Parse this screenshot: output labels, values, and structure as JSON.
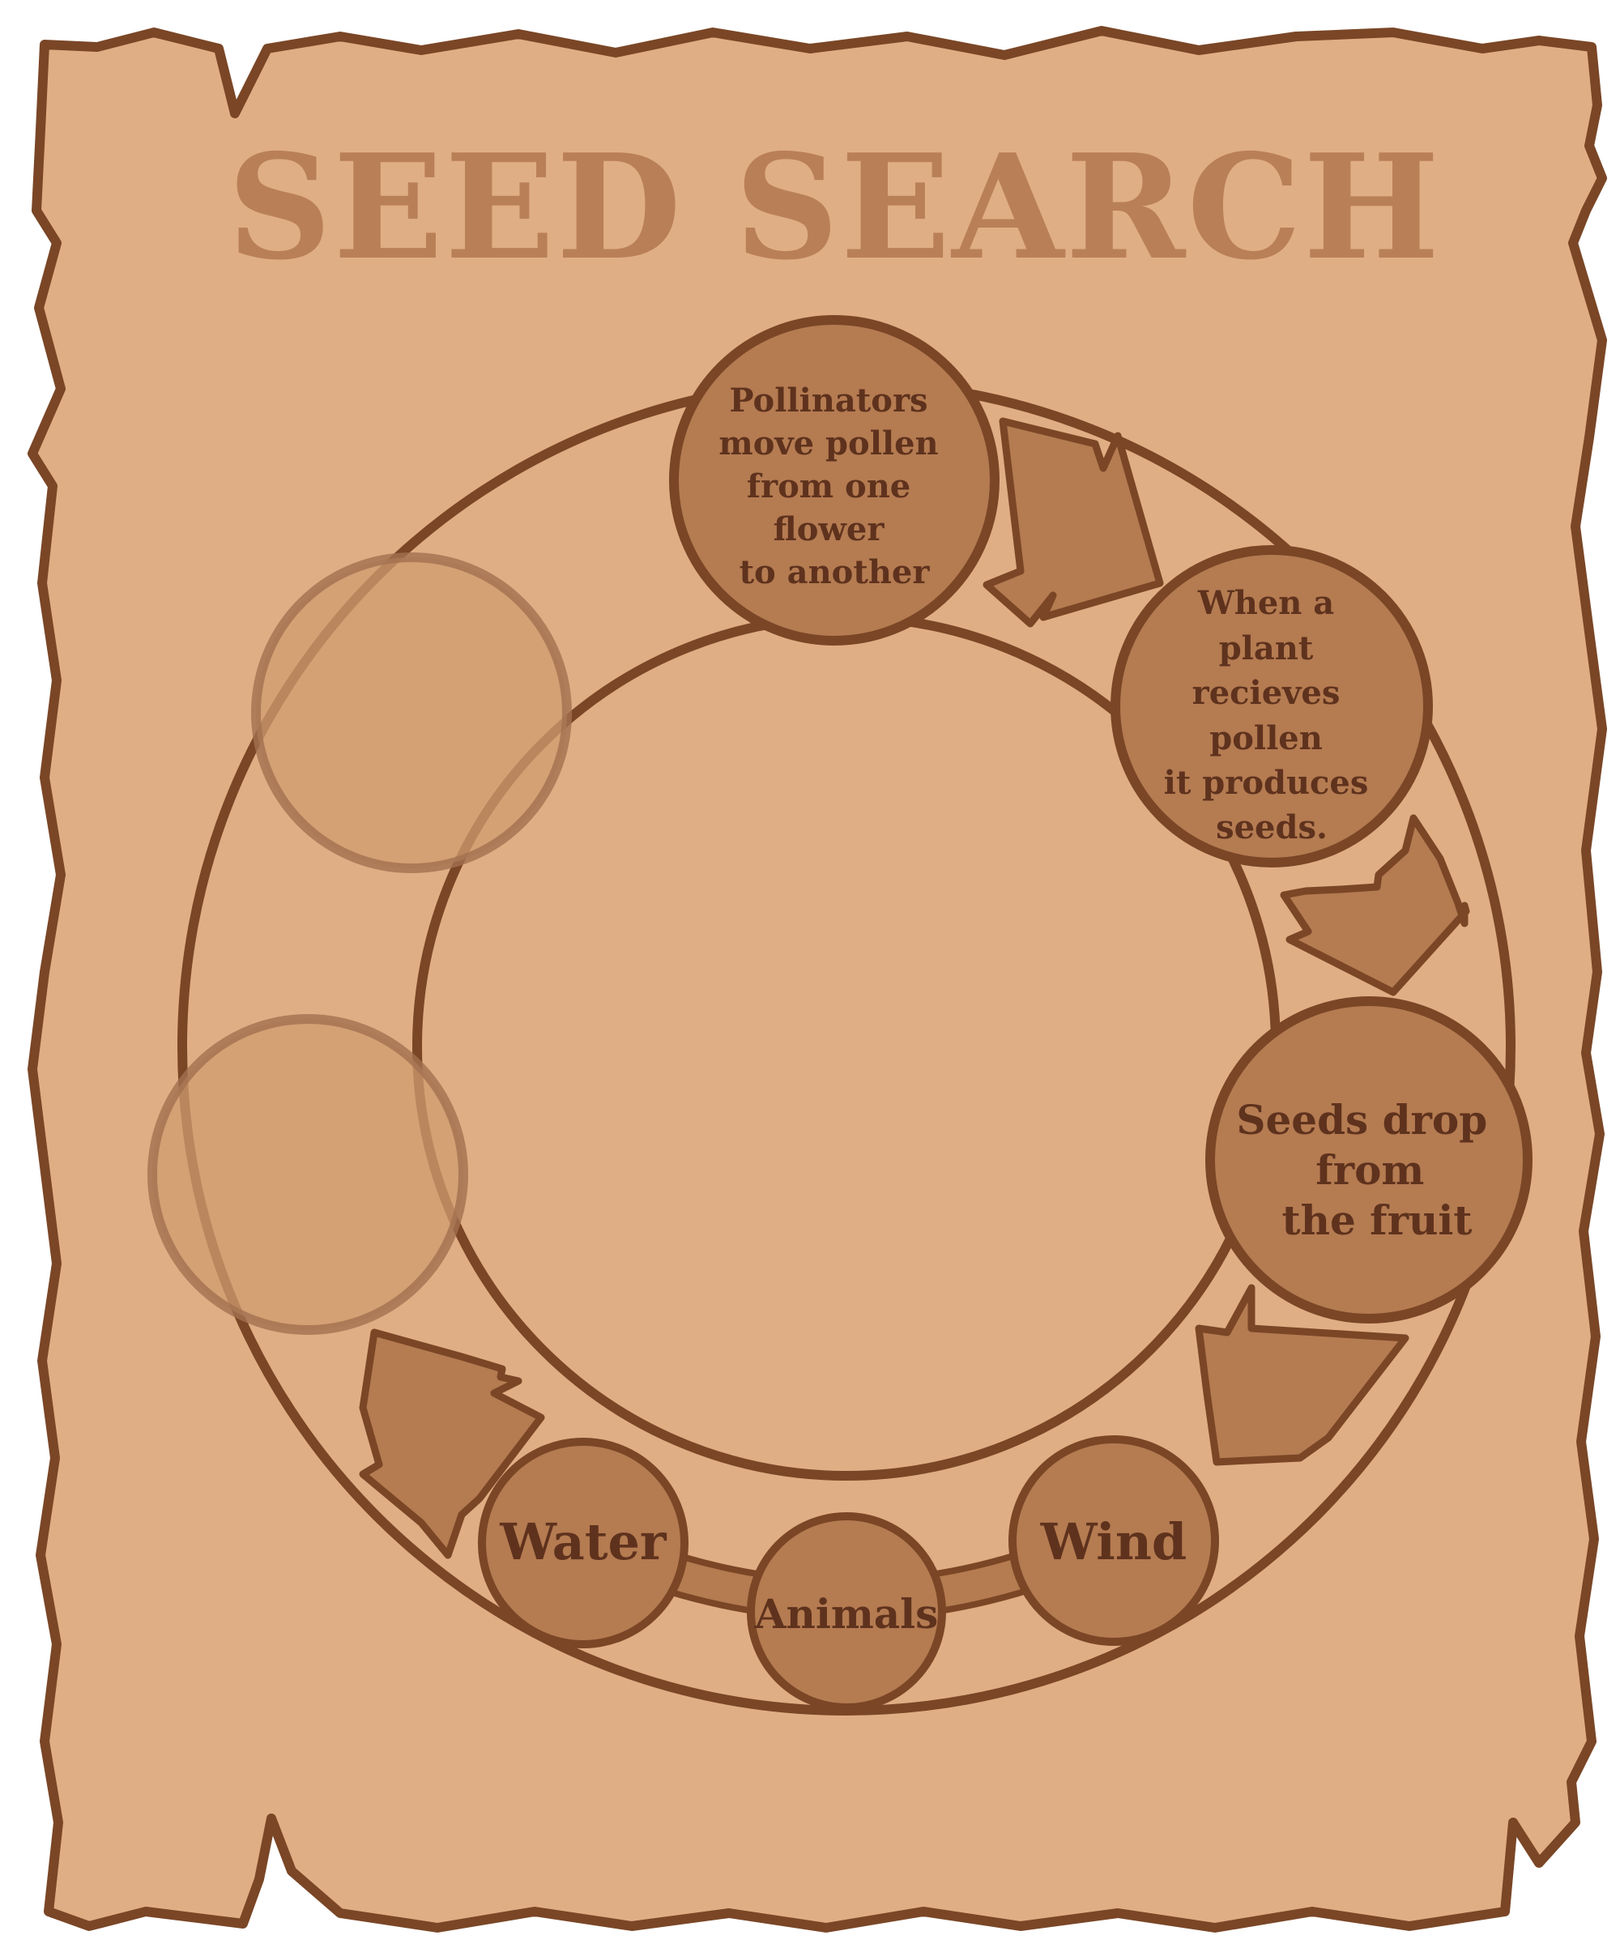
{
  "title": "SEED SEARCH",
  "colors": {
    "paper": "#e0ae84",
    "outline": "#7a4626",
    "node_fill": "#b57b51",
    "text": "#5e321d",
    "title": "#b98058",
    "ghost_fill": "#d09c70"
  },
  "cycle": {
    "steps": [
      {
        "id": "pollinate",
        "lines": [
          "Pollinators",
          "move pollen",
          "from one",
          "flower",
          "to another"
        ]
      },
      {
        "id": "produce",
        "lines": [
          "When a",
          "plant",
          "recieves",
          "pollen",
          "it produces",
          "seeds."
        ]
      },
      {
        "id": "drop",
        "lines": [
          "Seeds drop",
          "from",
          "the fruit"
        ]
      }
    ],
    "dispersal": [
      "Water",
      "Animals",
      "Wind"
    ]
  }
}
